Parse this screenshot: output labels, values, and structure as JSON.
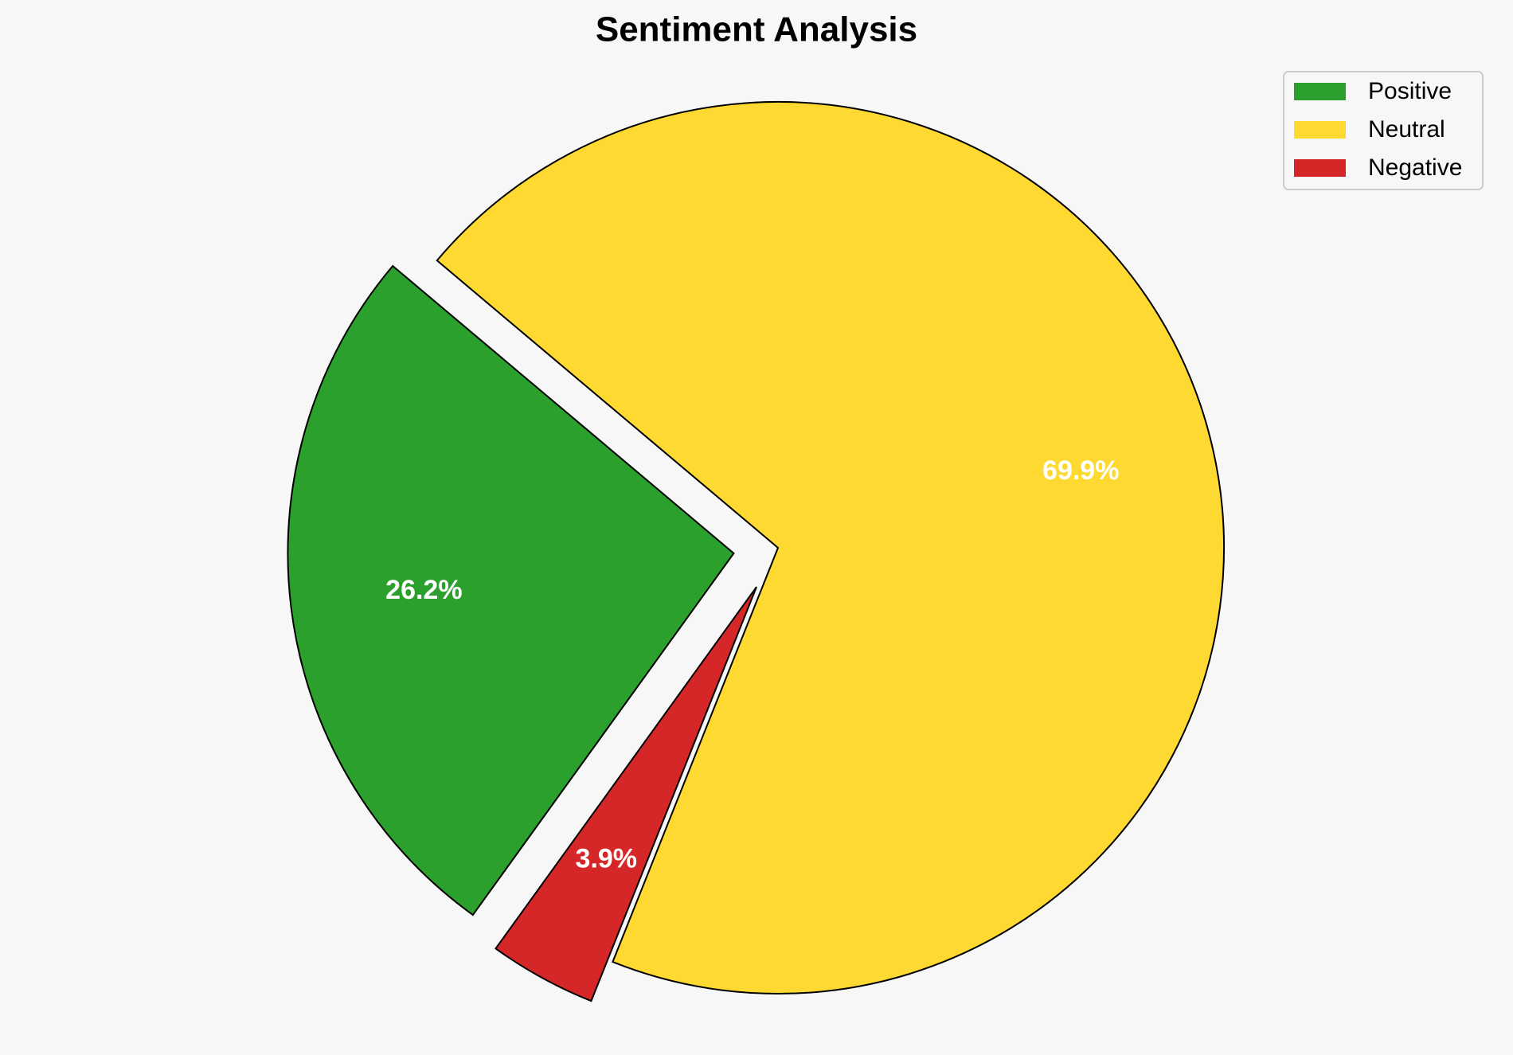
{
  "chart_data": {
    "type": "pie",
    "title": "Sentiment Analysis",
    "categories": [
      "Positive",
      "Neutral",
      "Negative"
    ],
    "values": [
      26.2,
      69.9,
      3.9
    ],
    "value_labels": [
      "26.2%",
      "69.9%",
      "3.9%"
    ],
    "colors": [
      "#2ca02c",
      "#fdd932",
      "#d62728"
    ],
    "explode": [
      0.1,
      0,
      0.1
    ],
    "legend": "upper right"
  }
}
